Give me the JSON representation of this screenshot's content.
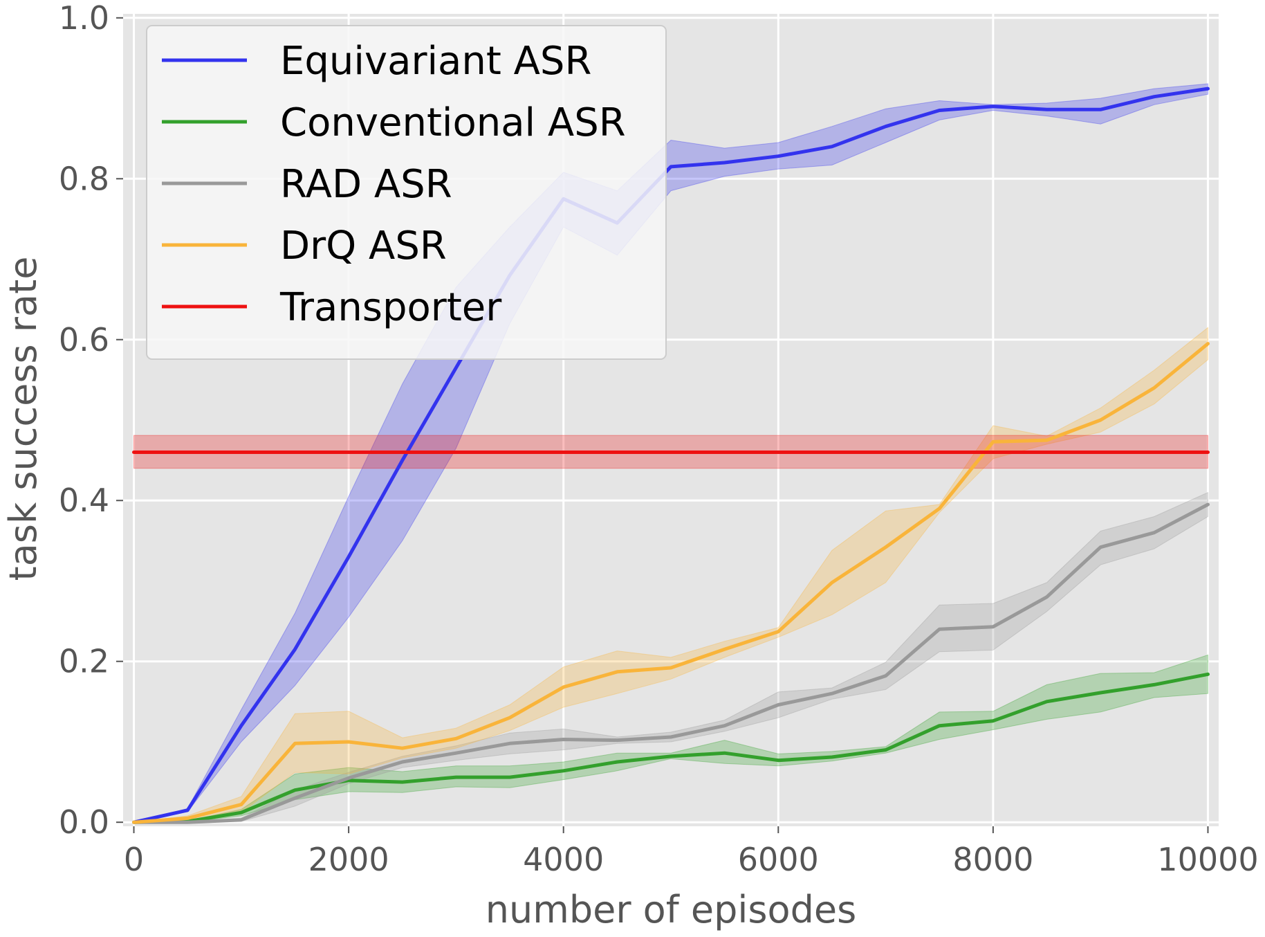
{
  "chart_data": {
    "type": "line",
    "title": "",
    "xlabel": "number of episodes",
    "ylabel": "task success rate",
    "xlim": [
      -100,
      10100
    ],
    "ylim": [
      -0.005,
      1.005
    ],
    "xticks": [
      0,
      2000,
      4000,
      6000,
      8000,
      10000
    ],
    "xtick_labels": [
      "0",
      "2000",
      "4000",
      "6000",
      "8000",
      "10000"
    ],
    "yticks": [
      0.0,
      0.2,
      0.4,
      0.6,
      0.8,
      1.0
    ],
    "ytick_labels": [
      "0.0",
      "0.2",
      "0.4",
      "0.6",
      "0.8",
      "1.0"
    ],
    "grid": true,
    "legend_position": "top-left",
    "x": [
      0,
      500,
      1000,
      1500,
      2000,
      2500,
      3000,
      3500,
      4000,
      4500,
      5000,
      5500,
      6000,
      6500,
      7000,
      7500,
      8000,
      8500,
      9000,
      9500,
      10000
    ],
    "series": [
      {
        "name": "Equivariant ASR",
        "color": "#3333ee",
        "values": [
          0.0,
          0.015,
          0.12,
          0.215,
          0.33,
          0.45,
          0.565,
          0.68,
          0.775,
          0.745,
          0.815,
          0.82,
          0.828,
          0.84,
          0.865,
          0.885,
          0.89,
          0.886,
          0.886,
          0.902,
          0.912
        ],
        "lower": [
          0.0,
          0.013,
          0.1,
          0.17,
          0.255,
          0.35,
          0.465,
          0.62,
          0.74,
          0.705,
          0.785,
          0.803,
          0.812,
          0.817,
          0.845,
          0.873,
          0.885,
          0.878,
          0.868,
          0.892,
          0.905
        ],
        "upper": [
          0.0,
          0.017,
          0.14,
          0.26,
          0.405,
          0.545,
          0.665,
          0.74,
          0.808,
          0.785,
          0.848,
          0.838,
          0.845,
          0.865,
          0.887,
          0.897,
          0.892,
          0.894,
          0.9,
          0.912,
          0.918
        ]
      },
      {
        "name": "Conventional ASR",
        "color": "#33a02c",
        "values": [
          0.0,
          0.001,
          0.012,
          0.04,
          0.052,
          0.05,
          0.056,
          0.056,
          0.064,
          0.075,
          0.082,
          0.086,
          0.077,
          0.081,
          0.09,
          0.12,
          0.126,
          0.15,
          0.161,
          0.171,
          0.184
        ],
        "lower": [
          0.0,
          0.0,
          0.008,
          0.028,
          0.038,
          0.037,
          0.044,
          0.043,
          0.053,
          0.064,
          0.079,
          0.073,
          0.07,
          0.076,
          0.086,
          0.103,
          0.115,
          0.128,
          0.137,
          0.155,
          0.16
        ],
        "upper": [
          0.0,
          0.002,
          0.016,
          0.06,
          0.068,
          0.063,
          0.07,
          0.07,
          0.075,
          0.086,
          0.086,
          0.102,
          0.085,
          0.088,
          0.094,
          0.137,
          0.138,
          0.171,
          0.185,
          0.186,
          0.208
        ]
      },
      {
        "name": "RAD ASR",
        "color": "#999999",
        "values": [
          0.0,
          0.0,
          0.003,
          0.03,
          0.055,
          0.075,
          0.086,
          0.098,
          0.103,
          0.102,
          0.106,
          0.12,
          0.146,
          0.16,
          0.182,
          0.24,
          0.243,
          0.28,
          0.342,
          0.36,
          0.395
        ],
        "lower": [
          0.0,
          0.0,
          0.001,
          0.02,
          0.048,
          0.068,
          0.077,
          0.085,
          0.09,
          0.098,
          0.1,
          0.113,
          0.13,
          0.153,
          0.165,
          0.212,
          0.214,
          0.262,
          0.32,
          0.34,
          0.38
        ],
        "upper": [
          0.0,
          0.0,
          0.005,
          0.04,
          0.062,
          0.082,
          0.095,
          0.111,
          0.116,
          0.106,
          0.112,
          0.127,
          0.162,
          0.167,
          0.199,
          0.27,
          0.272,
          0.298,
          0.362,
          0.38,
          0.41
        ]
      },
      {
        "name": "DrQ ASR",
        "color": "#f9b43a",
        "values": [
          0.0,
          0.005,
          0.022,
          0.098,
          0.1,
          0.092,
          0.104,
          0.13,
          0.168,
          0.187,
          0.192,
          0.215,
          0.237,
          0.298,
          0.342,
          0.39,
          0.473,
          0.475,
          0.5,
          0.54,
          0.595
        ],
        "lower": [
          0.0,
          0.002,
          0.012,
          0.062,
          0.06,
          0.08,
          0.092,
          0.114,
          0.143,
          0.16,
          0.178,
          0.205,
          0.23,
          0.258,
          0.298,
          0.385,
          0.452,
          0.47,
          0.485,
          0.52,
          0.575
        ],
        "upper": [
          0.0,
          0.008,
          0.032,
          0.135,
          0.138,
          0.105,
          0.117,
          0.146,
          0.193,
          0.213,
          0.205,
          0.225,
          0.242,
          0.338,
          0.387,
          0.395,
          0.493,
          0.48,
          0.515,
          0.562,
          0.615
        ]
      },
      {
        "name": "Transporter",
        "color": "#ee1111",
        "values": [
          0.46,
          0.46,
          0.46,
          0.46,
          0.46,
          0.46,
          0.46,
          0.46,
          0.46,
          0.46,
          0.46,
          0.46,
          0.46,
          0.46,
          0.46,
          0.46,
          0.46,
          0.46,
          0.46,
          0.46,
          0.46
        ],
        "lower": [
          0.44,
          0.44,
          0.44,
          0.44,
          0.44,
          0.44,
          0.44,
          0.44,
          0.44,
          0.44,
          0.44,
          0.44,
          0.44,
          0.44,
          0.44,
          0.44,
          0.44,
          0.44,
          0.44,
          0.44,
          0.44
        ],
        "upper": [
          0.481,
          0.481,
          0.481,
          0.481,
          0.481,
          0.481,
          0.481,
          0.481,
          0.481,
          0.481,
          0.481,
          0.481,
          0.481,
          0.481,
          0.481,
          0.481,
          0.481,
          0.481,
          0.481,
          0.481,
          0.481
        ]
      }
    ]
  }
}
